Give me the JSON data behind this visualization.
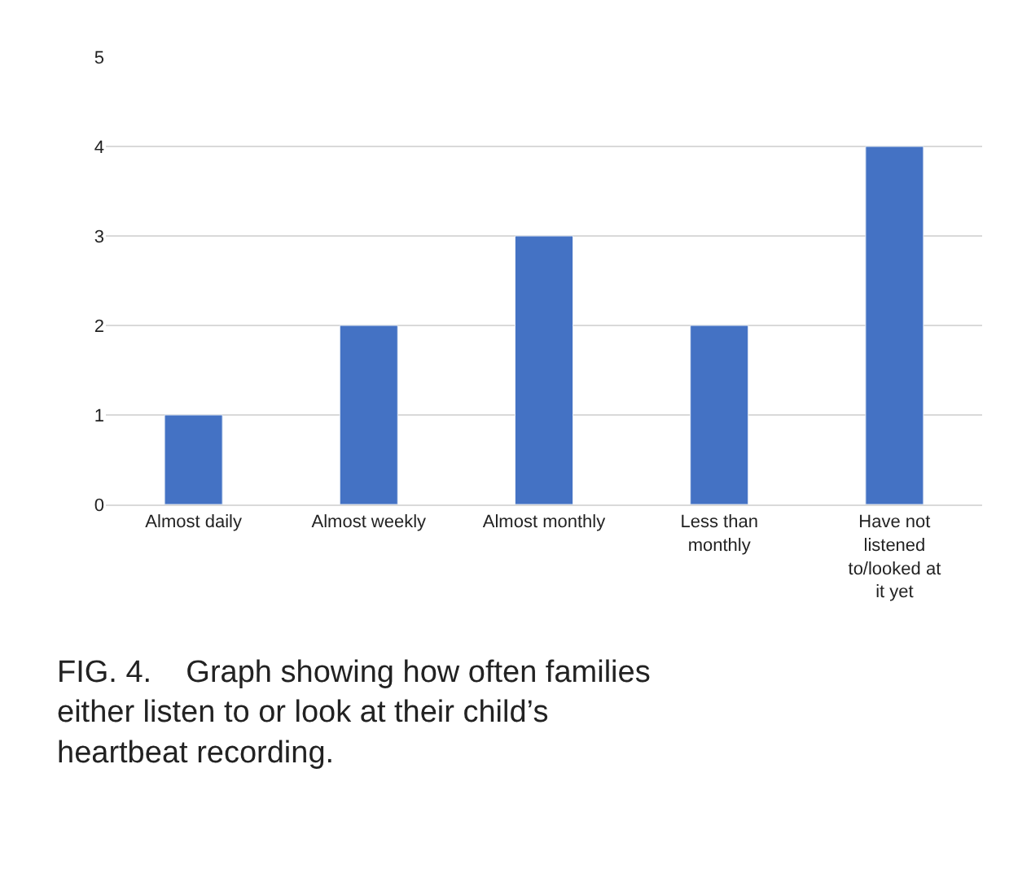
{
  "chart_data": {
    "type": "bar",
    "categories": [
      "Almost daily",
      "Almost weekly",
      "Almost monthly",
      "Less than monthly",
      "Have not listened to/looked at it yet"
    ],
    "values": [
      1,
      2,
      3,
      2,
      4
    ],
    "color": "#4472c4",
    "ylim": [
      0,
      5
    ],
    "yticks": [
      0,
      1,
      2,
      3,
      4,
      5
    ],
    "grid": "y",
    "annotations": [
      "FIG. 4.    Graph showing how often families either listen to or look at their child’s heartbeat recording."
    ]
  }
}
